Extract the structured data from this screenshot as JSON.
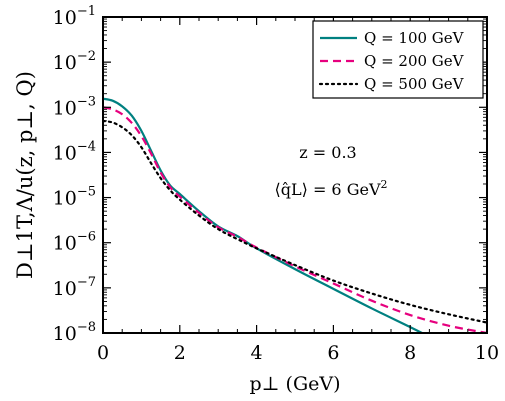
{
  "chart_data": {
    "type": "line",
    "xlabel": "p⊥ (GeV)",
    "ylabel": "D⊥1T,Λ/u(z, p⊥, Q)",
    "xlim": [
      0,
      10
    ],
    "ylim": [
      1e-08,
      0.1
    ],
    "yscale": "log",
    "x_ticks": [
      "0",
      "2",
      "4",
      "6",
      "8",
      "10"
    ],
    "y_ticks": [
      "10",
      "10",
      "10",
      "10",
      "10",
      "10",
      "10",
      "10"
    ],
    "y_tick_exponents": [
      "-1",
      "-2",
      "-3",
      "-4",
      "-5",
      "-6",
      "-7",
      "-8"
    ],
    "grid": false,
    "legend_position": "top-right",
    "annotations": {
      "z": "z = 0.3",
      "qhat_lhs": "⟨q̂L⟩ = 6 GeV",
      "qhat_exp": "2"
    },
    "series": [
      {
        "name": "Q = 100 GeV",
        "color": "#008080",
        "style": "solid",
        "x": [
          0,
          0.25,
          0.5,
          0.75,
          1.0,
          1.25,
          1.5,
          1.75,
          2.0,
          2.5,
          3.0,
          3.5,
          4.0,
          5.0,
          6.0,
          7.0,
          8.0,
          8.6
        ],
        "y": [
          0.00155,
          0.0014,
          0.00105,
          0.00065,
          0.0003,
          0.00011,
          4e-05,
          1.85e-05,
          1.2e-05,
          5e-06,
          2.3e-06,
          1.4e-06,
          7.5e-07,
          2.6e-07,
          9.5e-08,
          3.5e-08,
          1.35e-08,
          7.5e-09
        ]
      },
      {
        "name": "Q = 200 GeV",
        "color": "#e6007e",
        "style": "dashed",
        "x": [
          0,
          0.25,
          0.5,
          0.75,
          1.0,
          1.25,
          1.5,
          1.75,
          2.0,
          2.5,
          3.0,
          3.5,
          4.0,
          5.0,
          6.0,
          7.0,
          8.0,
          9.0,
          10.0
        ],
        "y": [
          0.001,
          0.0009,
          0.0007,
          0.00045,
          0.00023,
          9.5e-05,
          3.6e-05,
          1.7e-05,
          1.05e-05,
          4.6e-06,
          2.2e-06,
          1.35e-06,
          7.8e-07,
          3e-07,
          1.25e-07,
          5.2e-08,
          2.5e-08,
          1.45e-08,
          1e-08
        ]
      },
      {
        "name": "Q = 500 GeV",
        "color": "#000000",
        "style": "dotted",
        "x": [
          0,
          0.25,
          0.5,
          0.75,
          1.0,
          1.25,
          1.5,
          1.75,
          2.0,
          2.5,
          3.0,
          3.5,
          4.0,
          5.0,
          6.0,
          7.0,
          8.0,
          9.0,
          10.0
        ],
        "y": [
          0.0005,
          0.00046,
          0.00036,
          0.00024,
          0.00013,
          5.8e-05,
          2.7e-05,
          1.45e-05,
          9e-06,
          4e-06,
          2e-06,
          1.2e-06,
          7.5e-07,
          3.2e-07,
          1.45e-07,
          7.5e-08,
          4.2e-08,
          2.6e-08,
          1.7e-08
        ]
      }
    ]
  }
}
